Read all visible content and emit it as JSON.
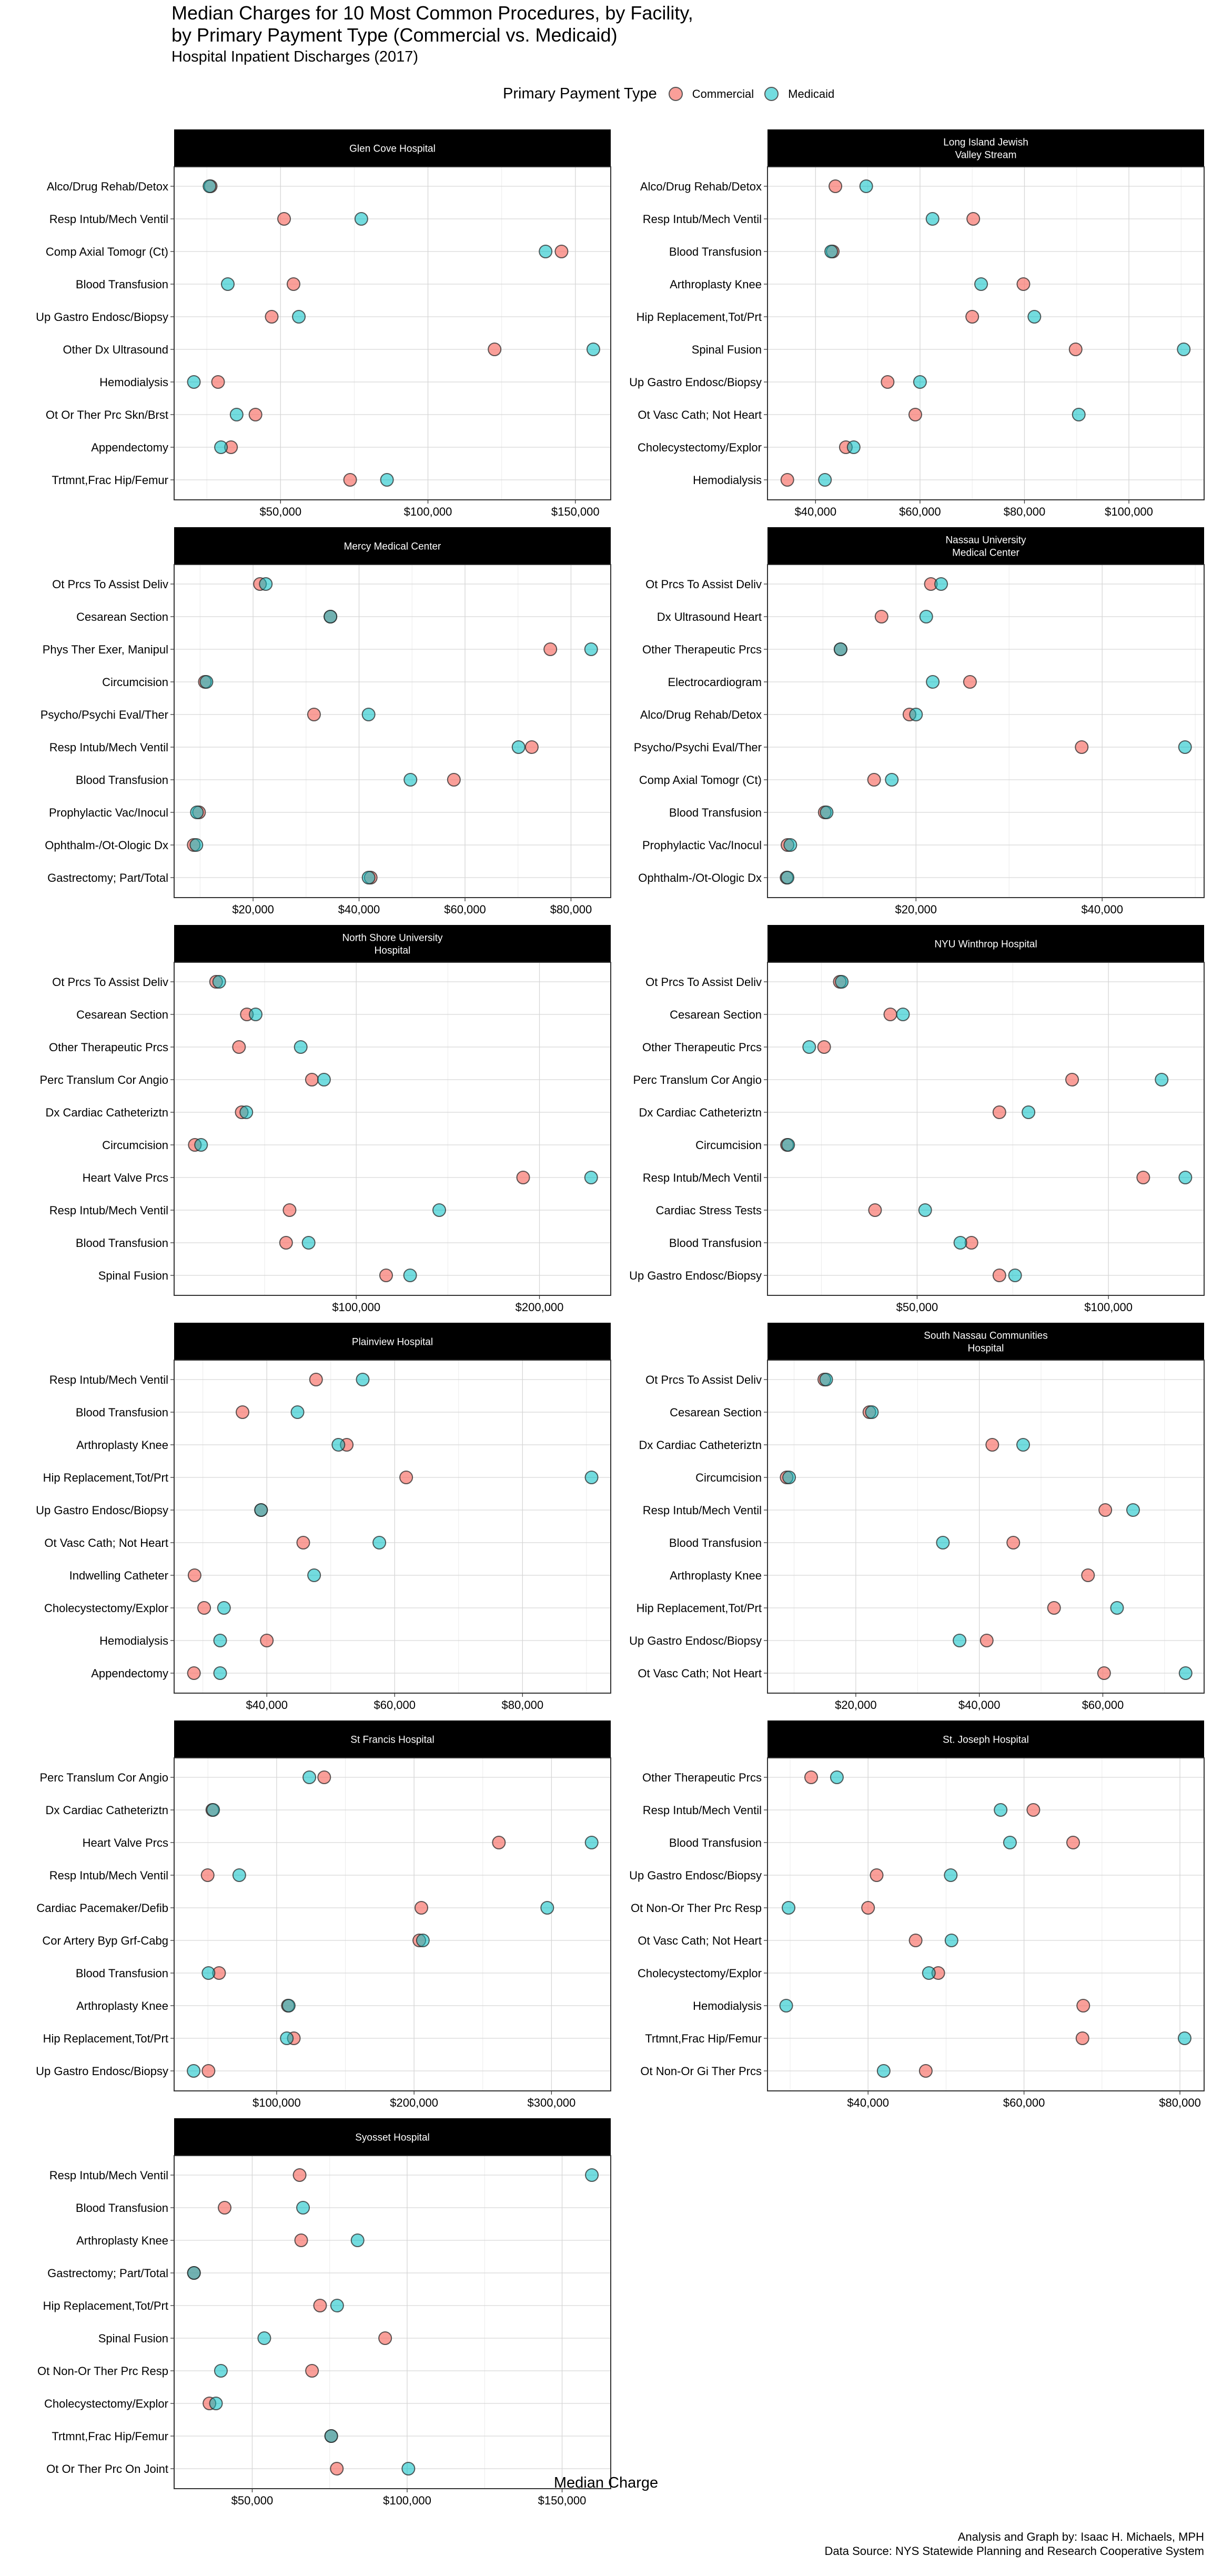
{
  "title": "Median Charges for 10 Most Common Procedures, by Facility,",
  "title_line2": "by Primary Payment Type (Commercial vs. Medicaid)",
  "subtitle": "Hospital Inpatient Discharges (2017)",
  "legend": {
    "title": "Primary Payment Type",
    "items": [
      {
        "label": "Commercial",
        "color": "#F8766D"
      },
      {
        "label": "Medicaid",
        "color": "#00BFC4"
      }
    ]
  },
  "xlabel": "Median Charge",
  "caption_line1": "Analysis and Graph by: Isaac H. Michaels, MPH",
  "caption_line2": "Data Source: NYS Statewide Planning and Research Cooperative System",
  "chart_data": {
    "type": "scatter",
    "subtype": "faceted dot plot",
    "title": "Median Charges for 10 Most Common Procedures, by Facility, by Primary Payment Type (Commercial vs. Medicaid)",
    "subtitle": "Hospital Inpatient Discharges (2017)",
    "xlabel": "Median Charge",
    "ylabel": "",
    "legend_position": "top",
    "grid": true,
    "series_names": [
      "Commercial",
      "Medicaid"
    ],
    "colors": {
      "Commercial": "#F8766D",
      "Medicaid": "#00BFC4"
    },
    "facets": [
      {
        "name": "Glen Cove Hospital",
        "xlim": [
          13900,
          162000
        ],
        "xticks": [
          50000,
          100000,
          150000
        ],
        "xtick_labels": [
          "$50,000",
          "$100,000",
          "$150,000"
        ],
        "procedures": [
          "Alco/Drug Rehab/Detox",
          "Resp Intub/Mech Ventil",
          "Comp Axial Tomogr (Ct)",
          "Blood Transfusion",
          "Up Gastro Endosc/Biopsy",
          "Other Dx Ultrasound",
          "Hemodialysis",
          "Ot Or Ther Prc Skn/Brst",
          "Appendectomy",
          "Trtmnt,Frac Hip/Femur"
        ],
        "commercial": [
          26300,
          51200,
          145300,
          54400,
          47000,
          122600,
          28800,
          41500,
          33200,
          73600
        ],
        "medicaid": [
          25900,
          77400,
          139900,
          32100,
          56200,
          156100,
          20600,
          35100,
          29800,
          86100
        ]
      },
      {
        "name": "Long Island Jewish\nValley Stream",
        "xlim": [
          30800,
          114400
        ],
        "xticks": [
          40000,
          60000,
          80000,
          100000
        ],
        "xtick_labels": [
          "$40,000",
          "$60,000",
          "$80,000",
          "$100,000"
        ],
        "procedures": [
          "Alco/Drug Rehab/Detox",
          "Resp Intub/Mech Ventil",
          "Blood Transfusion",
          "Arthroplasty Knee",
          "Hip Replacement,Tot/Prt",
          "Spinal Fusion",
          "Up Gastro Endosc/Biopsy",
          "Ot Vasc Cath; Not Heart",
          "Cholecystectomy/Explor",
          "Hemodialysis"
        ],
        "commercial": [
          43800,
          70200,
          43300,
          79800,
          70000,
          89800,
          53800,
          59100,
          45800,
          34600
        ],
        "medicaid": [
          49700,
          62400,
          43000,
          71700,
          81900,
          110500,
          60000,
          90400,
          47300,
          41800
        ]
      },
      {
        "name": "Mercy Medical Center",
        "xlim": [
          5100,
          87500
        ],
        "xticks": [
          20000,
          40000,
          60000,
          80000
        ],
        "xtick_labels": [
          "$20,000",
          "$40,000",
          "$60,000",
          "$80,000"
        ],
        "procedures": [
          "Ot Prcs To Assist Deliv",
          "Cesarean Section",
          "Phys Ther Exer, Manipul",
          "Circumcision",
          "Psycho/Psychi Eval/Ther",
          "Resp Intub/Mech Ventil",
          "Blood Transfusion",
          "Prophylactic Vac/Inocul",
          "Ophthalm-/Ot-Ologic Dx",
          "Gastrectomy; Part/Total"
        ],
        "commercial": [
          21300,
          34600,
          76100,
          10900,
          31500,
          72600,
          57900,
          9800,
          8800,
          42200
        ],
        "medicaid": [
          22400,
          34600,
          83800,
          11200,
          41800,
          70100,
          49700,
          9400,
          9300,
          41800
        ]
      },
      {
        "name": "Nassau University\nMedical Center",
        "xlim": [
          4050,
          50950
        ],
        "xticks": [
          20000,
          40000
        ],
        "xtick_labels": [
          "$20,000",
          "$40,000"
        ],
        "procedures": [
          "Ot Prcs To Assist Deliv",
          "Dx Ultrasound Heart",
          "Other Therapeutic Prcs",
          "Electrocardiogram",
          "Alco/Drug Rehab/Detox",
          "Psycho/Psychi Eval/Ther",
          "Comp Axial Tomogr (Ct)",
          "Blood Transfusion",
          "Prophylactic Vac/Inocul",
          "Ophthalm-/Ot-Ologic Dx"
        ],
        "commercial": [
          21600,
          16300,
          11900,
          25800,
          19300,
          37800,
          15500,
          10200,
          6200,
          6100
        ],
        "medicaid": [
          22700,
          21100,
          11900,
          21800,
          20000,
          48900,
          17400,
          10400,
          6500,
          6200
        ]
      },
      {
        "name": "North Shore University\nHospital",
        "xlim": [
          600,
          238900
        ],
        "xticks": [
          100000,
          200000
        ],
        "xtick_labels": [
          "$100,000",
          "$200,000"
        ],
        "procedures": [
          "Ot Prcs To Assist Deliv",
          "Cesarean Section",
          "Other Therapeutic Prcs",
          "Perc Translum Cor Angio",
          "Dx Cardiac Catheteriztn",
          "Circumcision",
          "Heart Valve Prcs",
          "Resp Intub/Mech Ventil",
          "Blood Transfusion",
          "Spinal Fusion"
        ],
        "commercial": [
          23500,
          40300,
          36000,
          75800,
          37500,
          11900,
          191100,
          63600,
          61700,
          116300
        ],
        "medicaid": [
          25200,
          45100,
          69700,
          82400,
          40000,
          15300,
          228200,
          145300,
          74000,
          129400
        ]
      },
      {
        "name": "NYU Winthrop Hospital",
        "xlim": [
          10900,
          125000
        ],
        "xticks": [
          50000,
          100000
        ],
        "xtick_labels": [
          "$50,000",
          "$100,000"
        ],
        "procedures": [
          "Ot Prcs To Assist Deliv",
          "Cesarean Section",
          "Other Therapeutic Prcs",
          "Perc Translum Cor Angio",
          "Dx Cardiac Catheteriztn",
          "Circumcision",
          "Resp Intub/Mech Ventil",
          "Cardiac Stress Tests",
          "Blood Transfusion",
          "Up Gastro Endosc/Biopsy"
        ],
        "commercial": [
          29800,
          43000,
          25700,
          90500,
          71500,
          16000,
          109100,
          39000,
          64200,
          71500
        ],
        "medicaid": [
          30300,
          46300,
          21800,
          113900,
          79100,
          16300,
          120100,
          52100,
          61300,
          75600
        ]
      },
      {
        "name": "Plainview Hospital",
        "xlim": [
          25500,
          93800
        ],
        "xticks": [
          40000,
          60000,
          80000
        ],
        "xtick_labels": [
          "$40,000",
          "$60,000",
          "$80,000"
        ],
        "procedures": [
          "Resp Intub/Mech Ventil",
          "Blood Transfusion",
          "Arthroplasty Knee",
          "Hip Replacement,Tot/Prt",
          "Up Gastro Endosc/Biopsy",
          "Ot Vasc Cath; Not Heart",
          "Indwelling Catheter",
          "Cholecystectomy/Explor",
          "Hemodialysis",
          "Appendectomy"
        ],
        "commercial": [
          47700,
          36200,
          52500,
          61800,
          39100,
          45700,
          28700,
          30200,
          40000,
          28600
        ],
        "medicaid": [
          55000,
          44800,
          51200,
          90800,
          39100,
          57600,
          47400,
          33300,
          32700,
          32700
        ]
      },
      {
        "name": "South Nassau Communities\nHospital",
        "xlim": [
          5700,
          76400
        ],
        "xticks": [
          20000,
          40000,
          60000
        ],
        "xtick_labels": [
          "$20,000",
          "$40,000",
          "$60,000"
        ],
        "procedures": [
          "Ot Prcs To Assist Deliv",
          "Cesarean Section",
          "Dx Cardiac Catheteriztn",
          "Circumcision",
          "Resp Intub/Mech Ventil",
          "Blood Transfusion",
          "Arthroplasty Knee",
          "Hip Replacement,Tot/Prt",
          "Up Gastro Endosc/Biopsy",
          "Ot Vasc Cath; Not Heart"
        ],
        "commercial": [
          14900,
          22200,
          42100,
          8800,
          60400,
          45500,
          57600,
          52100,
          41200,
          60200
        ],
        "medicaid": [
          15200,
          22600,
          47100,
          9200,
          64900,
          34100,
          null,
          62300,
          36800,
          73400
        ]
      },
      {
        "name": "St Francis Hospital",
        "xlim": [
          25400,
          343100
        ],
        "xticks": [
          100000,
          200000,
          300000
        ],
        "xtick_labels": [
          "$100,000",
          "$200,000",
          "$300,000"
        ],
        "procedures": [
          "Perc Translum Cor Angio",
          "Dx Cardiac Catheteriztn",
          "Heart Valve Prcs",
          "Resp Intub/Mech Ventil",
          "Cardiac Pacemaker/Defib",
          "Cor Artery Byp Grf-Cabg",
          "Blood Transfusion",
          "Arthroplasty Knee",
          "Hip Replacement,Tot/Prt",
          "Up Gastro Endosc/Biopsy"
        ],
        "commercial": [
          134600,
          53200,
          261700,
          49800,
          205300,
          203800,
          58100,
          108200,
          112500,
          50400
        ],
        "medicaid": [
          123800,
          53800,
          329200,
          72800,
          296900,
          206400,
          50400,
          108800,
          107400,
          39600
        ]
      },
      {
        "name": "St. Joseph Hospital",
        "xlim": [
          27100,
          83100
        ],
        "xticks": [
          40000,
          60000,
          80000
        ],
        "xtick_labels": [
          "$40,000",
          "$60,000",
          "$80,000"
        ],
        "procedures": [
          "Other Therapeutic Prcs",
          "Resp Intub/Mech Ventil",
          "Blood Transfusion",
          "Up Gastro Endosc/Biopsy",
          "Ot Non-Or Ther Prc Resp",
          "Ot Vasc Cath; Not Heart",
          "Cholecystectomy/Explor",
          "Hemodialysis",
          "Trtmnt,Frac Hip/Femur",
          "Ot Non-Or Gi Ther Prcs"
        ],
        "commercial": [
          32700,
          61200,
          66300,
          41100,
          40000,
          46100,
          49000,
          67600,
          67500,
          47400
        ],
        "medicaid": [
          36000,
          57000,
          58200,
          50600,
          29800,
          50700,
          47800,
          29500,
          80600,
          42000
        ]
      },
      {
        "name": "Syosset Hospital",
        "xlim": [
          24800,
          165700
        ],
        "xticks": [
          50000,
          100000,
          150000
        ],
        "xtick_labels": [
          "$50,000",
          "$100,000",
          "$150,000"
        ],
        "procedures": [
          "Resp Intub/Mech Ventil",
          "Blood Transfusion",
          "Arthroplasty Knee",
          "Gastrectomy; Part/Total",
          "Hip Replacement,Tot/Prt",
          "Spinal Fusion",
          "Ot Non-Or Ther Prc Resp",
          "Cholecystectomy/Explor",
          "Trtmnt,Frac Hip/Femur",
          "Ot Or Ther Prc On Joint"
        ],
        "commercial": [
          65300,
          41100,
          65800,
          31200,
          71900,
          92900,
          69300,
          36200,
          75500,
          77300
        ],
        "medicaid": [
          159600,
          66400,
          84000,
          31200,
          77400,
          53900,
          39900,
          38300,
          75500,
          100400
        ]
      }
    ]
  }
}
